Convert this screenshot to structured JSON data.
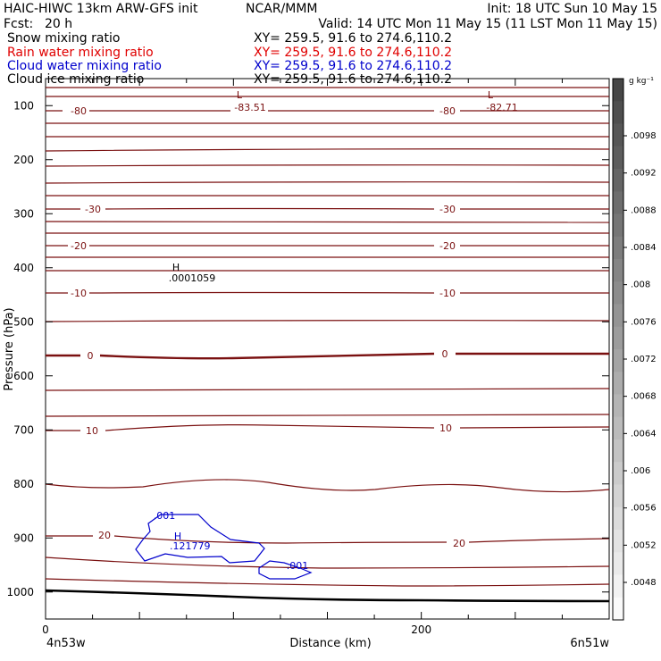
{
  "header": {
    "title": "HAIC-HIWC 13km ARW-GFS init",
    "org": "NCAR/MMM",
    "init": "Init: 18 UTC Sun 10 May 15",
    "fcst_label": "Fcst:",
    "fcst_value": "20 h",
    "valid": "Valid: 14 UTC Mon 11 May 15 (11 LST Mon 11 May 15)"
  },
  "fields": [
    {
      "name": "Snow mixing ratio",
      "xy": "XY= 259.5, 91.6 to 274.6,110.2",
      "color": "#000000"
    },
    {
      "name": "Rain water mixing ratio",
      "xy": "XY= 259.5, 91.6 to 274.6,110.2",
      "color": "#e00000"
    },
    {
      "name": "Cloud water mixing ratio",
      "xy": "XY= 259.5, 91.6 to 274.6,110.2",
      "color": "#0000cc"
    },
    {
      "name": "Cloud ice mixing ratio",
      "xy": "XY= 259.5, 91.6 to 274.6,110.2",
      "color": "#000000"
    }
  ],
  "chart_data": {
    "type": "contour",
    "ylabel": "Pressure (hPa)",
    "xlabel": "Distance (km)",
    "x_ticks": [
      "0",
      "200"
    ],
    "x_range": [
      0,
      300
    ],
    "y_ticks": [
      "100",
      "200",
      "300",
      "400",
      "500",
      "600",
      "700",
      "800",
      "900",
      "1000"
    ],
    "y_range": [
      50,
      1050
    ],
    "y_scale": "linear",
    "x_left_label": "4n53w",
    "x_right_label": "6n51w",
    "contour_color": "#7a1010",
    "cloud_color": "#0000cc",
    "temperature_labels": [
      "-80",
      "-80",
      "-30",
      "-30",
      "-20",
      "-20",
      "-10",
      "-10",
      "0",
      "0",
      "10",
      "10",
      "20",
      "20"
    ],
    "extrema": [
      {
        "mark": "L",
        "value": "-83.51"
      },
      {
        "mark": "L",
        "value": "-82.71"
      },
      {
        "mark": "H",
        "value": ".0001059"
      },
      {
        "mark": "H",
        "value": ".121779"
      }
    ],
    "cloud_labels": [
      ".001",
      ".001"
    ],
    "colorbar": {
      "units": "g kg⁻¹",
      "labels": [
        ".0098",
        ".0092",
        ".0088",
        ".0084",
        ".008",
        ".0076",
        ".0072",
        ".0068",
        ".0064",
        ".006",
        ".0056",
        ".0052",
        ".0048"
      ]
    }
  }
}
